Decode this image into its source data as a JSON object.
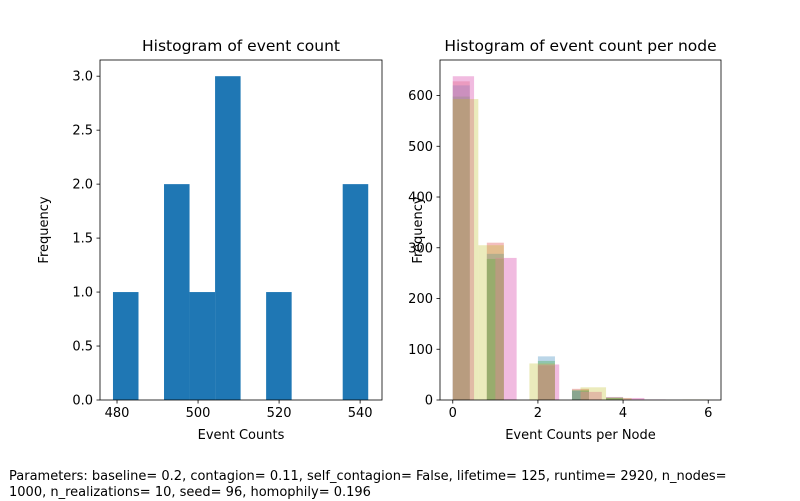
{
  "chart_data": [
    {
      "type": "bar",
      "title": "Histogram of event count",
      "xlabel": "Event Counts",
      "ylabel": "Frequency",
      "xlim": [
        475.8,
        545.4
      ],
      "ylim": [
        0,
        3.15
      ],
      "xticks": [
        480,
        500,
        520,
        540
      ],
      "yticks": [
        0.0,
        0.5,
        1.0,
        1.5,
        2.0,
        2.5,
        3.0
      ],
      "bin_width": 6.3,
      "series": [
        {
          "color": "#1f77b4",
          "bins": [
            {
              "x0": 479.0,
              "value": 1
            },
            {
              "x0": 491.6,
              "value": 2
            },
            {
              "x0": 497.9,
              "value": 1
            },
            {
              "x0": 504.2,
              "value": 3
            },
            {
              "x0": 516.8,
              "value": 1
            },
            {
              "x0": 535.7,
              "value": 2
            }
          ]
        }
      ],
      "grid": false,
      "legend": "none"
    },
    {
      "type": "bar",
      "title": "Histogram of event count per node",
      "xlabel": "Event Counts per Node",
      "ylabel": "Frequency",
      "xlim": [
        -0.3,
        6.3
      ],
      "ylim": [
        0,
        670
      ],
      "xticks": [
        0,
        2,
        4,
        6
      ],
      "yticks": [
        0,
        100,
        200,
        300,
        400,
        500,
        600
      ],
      "series": [
        {
          "color": "#d62728",
          "opacity": 0.3,
          "bins": [
            {
              "x0": 0.0,
              "x1": 0.4,
              "value": 628
            },
            {
              "x0": 0.8,
              "x1": 1.2,
              "value": 310
            },
            {
              "x0": 2.0,
              "x1": 2.4,
              "value": 68
            },
            {
              "x0": 2.8,
              "x1": 3.2,
              "value": 22
            },
            {
              "x0": 3.6,
              "x1": 4.0,
              "value": 6
            }
          ]
        },
        {
          "color": "#1f77b4",
          "opacity": 0.3,
          "bins": [
            {
              "x0": 0.0,
              "x1": 0.4,
              "value": 620
            },
            {
              "x0": 0.8,
              "x1": 1.2,
              "value": 288
            },
            {
              "x0": 2.0,
              "x1": 2.4,
              "value": 86
            },
            {
              "x0": 2.8,
              "x1": 3.2,
              "value": 18
            },
            {
              "x0": 3.6,
              "x1": 4.0,
              "value": 5
            }
          ]
        },
        {
          "color": "#2ca02c",
          "opacity": 0.3,
          "bins": [
            {
              "x0": 0.0,
              "x1": 0.4,
              "value": 598
            },
            {
              "x0": 0.8,
              "x1": 1.2,
              "value": 278
            },
            {
              "x0": 2.0,
              "x1": 2.4,
              "value": 77
            },
            {
              "x0": 2.8,
              "x1": 3.2,
              "value": 20
            },
            {
              "x0": 3.6,
              "x1": 4.0,
              "value": 4
            }
          ]
        },
        {
          "color": "#e377c2",
          "opacity": 0.5,
          "bins": [
            {
              "x0": 0.0,
              "x1": 0.5,
              "value": 638
            },
            {
              "x0": 1.0,
              "x1": 1.5,
              "value": 280
            },
            {
              "x0": 2.0,
              "x1": 2.5,
              "value": 70
            },
            {
              "x0": 3.0,
              "x1": 3.5,
              "value": 16
            },
            {
              "x0": 4.0,
              "x1": 4.5,
              "value": 4
            },
            {
              "x0": 4.5,
              "x1": 5.0,
              "value": 1
            }
          ]
        },
        {
          "color": "#bcbd22",
          "opacity": 0.3,
          "bins": [
            {
              "x0": 0.0,
              "x1": 0.6,
              "value": 593
            },
            {
              "x0": 0.6,
              "x1": 1.2,
              "value": 305
            },
            {
              "x0": 1.8,
              "x1": 2.4,
              "value": 72
            },
            {
              "x0": 3.0,
              "x1": 3.6,
              "value": 25
            },
            {
              "x0": 3.6,
              "x1": 4.2,
              "value": 4
            },
            {
              "x0": 5.4,
              "x1": 6.0,
              "value": 1
            }
          ]
        }
      ],
      "grid": false,
      "legend": "none"
    }
  ],
  "footer": {
    "parameters": "Parameters: baseline= 0.2, contagion= 0.11, self_contagion= False, lifetime= 125, runtime= 2920, n_nodes=\n1000, n_realizations= 10, seed= 96, homophily= 0.196"
  }
}
